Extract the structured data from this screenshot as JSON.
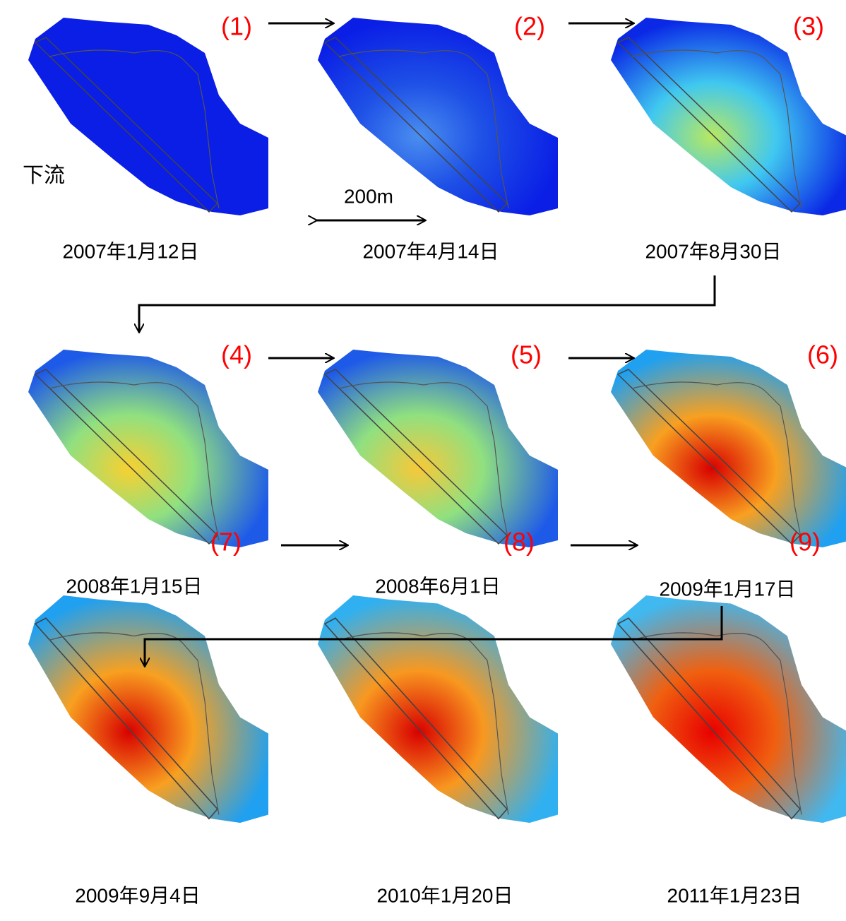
{
  "label_downstream": "下流",
  "scale_label": "200m",
  "panels": [
    {
      "number": "(1)",
      "date": "2007年1月12日"
    },
    {
      "number": "(2)",
      "date": "2007年4月14日"
    },
    {
      "number": "(3)",
      "date": "2007年8月30日"
    },
    {
      "number": "(4)",
      "date": "2008年1月15日"
    },
    {
      "number": "(5)",
      "date": "2008年6月1日"
    },
    {
      "number": "(6)",
      "date": "2009年1月17日"
    },
    {
      "number": "(7)",
      "date": "2009年9月4日"
    },
    {
      "number": "(8)",
      "date": "2010年1月20日"
    },
    {
      "number": "(9)",
      "date": "2011年1月23日"
    }
  ]
}
